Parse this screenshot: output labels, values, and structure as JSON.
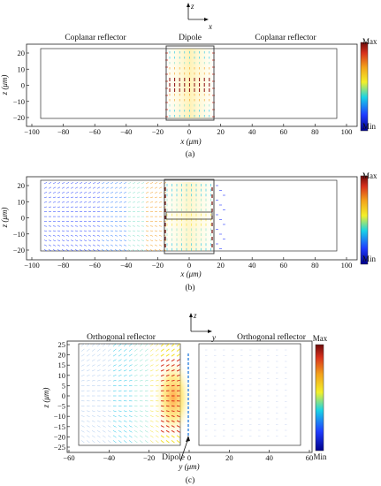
{
  "panel_a": {
    "label_left": "Coplanar reflector",
    "label_center": "Dipole",
    "label_right": "Coplanar reflector",
    "x_ticks": [
      "−100",
      "−80",
      "−60",
      "−40",
      "−20",
      "0",
      "20",
      "40",
      "60",
      "80",
      "100"
    ],
    "y_ticks": [
      "20",
      "10",
      "0",
      "−10",
      "−20"
    ],
    "xlabel": "x (μm)",
    "ylabel": "z (μm)",
    "caption": "(a)",
    "colorbar": {
      "max": "Max",
      "min": "Min"
    },
    "axes_glyph": {
      "up": "z",
      "right": "x"
    }
  },
  "panel_b": {
    "x_ticks": [
      "−100",
      "−80",
      "−60",
      "−40",
      "−20",
      "0",
      "20",
      "40",
      "60",
      "80",
      "100"
    ],
    "y_ticks": [
      "20",
      "10",
      "0",
      "−10",
      "−20"
    ],
    "xlabel": "x (μm)",
    "ylabel": "z (μm)",
    "caption": "(b)",
    "colorbar": {
      "max": "Max",
      "min": "Min"
    }
  },
  "panel_c": {
    "label_left": "Orthogonal reflector",
    "label_right": "Orthogonal reflector",
    "dipole_label": "Dipole",
    "x_ticks": [
      "−60",
      "−40",
      "−20",
      "0",
      "20",
      "40",
      "60"
    ],
    "y_ticks": [
      "25",
      "20",
      "15",
      "10",
      "5",
      "0",
      "−5",
      "−10",
      "−15",
      "−20",
      "−25"
    ],
    "xlabel": "y (μm)",
    "ylabel": "z (μm)",
    "caption": "(c)",
    "colorbar": {
      "max": "Max",
      "min": "Min"
    },
    "axes_glyph": {
      "up": "z",
      "right": "y"
    }
  }
}
